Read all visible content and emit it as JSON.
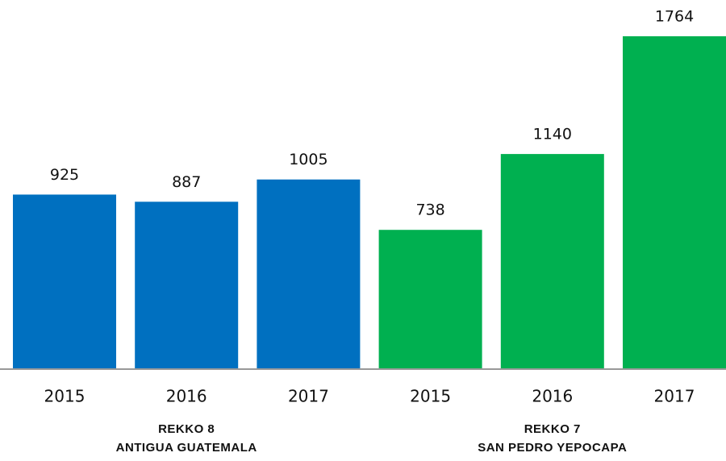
{
  "chart_data": {
    "type": "bar",
    "groups": [
      {
        "title": "REKKO 8",
        "subtitle": "ANTIGUA GUATEMALA",
        "color": "#0070c0",
        "categories": [
          "2015",
          "2016",
          "2017"
        ],
        "values": [
          925,
          887,
          1005
        ]
      },
      {
        "title": "REKKO 7",
        "subtitle": "SAN PEDRO YEPOCAPA",
        "color": "#00b050",
        "categories": [
          "2015",
          "2016",
          "2017"
        ],
        "values": [
          738,
          1140,
          1764
        ]
      }
    ]
  }
}
